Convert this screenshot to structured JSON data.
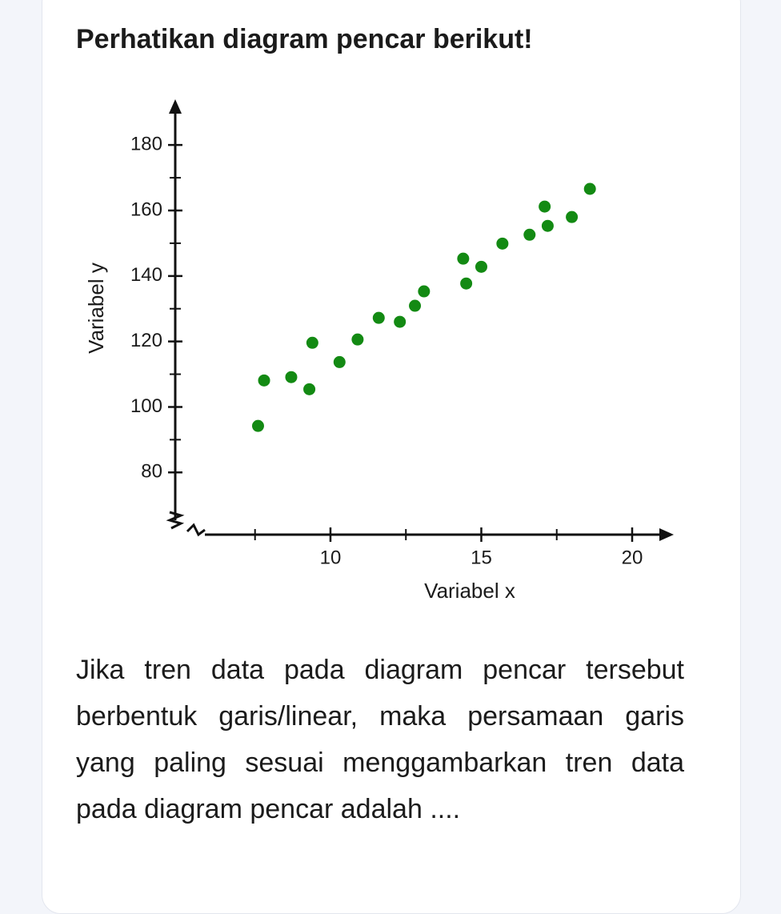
{
  "header": {
    "title": "Perhatikan diagram pencar berikut!"
  },
  "chart_data": {
    "type": "scatter",
    "x_label": "Variabel x",
    "y_label": "Variabel y",
    "series": [
      {
        "color": "#138a13",
        "x": [
          7.6,
          7.8,
          8.7,
          9.3,
          9.4,
          10.3,
          10.9,
          11.6,
          12.3,
          12.8,
          13.1,
          14.4,
          14.5,
          15.0,
          15.7,
          16.6,
          17.1,
          17.2,
          18.0,
          18.6
        ],
        "values": [
          94.2,
          108.1,
          109.1,
          105.4,
          119.6,
          113.7,
          120.6,
          127.2,
          126.0,
          130.9,
          135.3,
          145.3,
          137.7,
          142.8,
          149.9,
          152.6,
          161.2,
          155.3,
          158.0,
          166.6
        ]
      }
    ],
    "xlim": [
      5.2,
      21.3
    ],
    "ylim": [
      61,
      193
    ],
    "xticks": [
      10,
      15,
      20
    ],
    "x_minor_ticks": [
      7.5,
      12.5,
      17.5
    ],
    "yticks": [
      80,
      100,
      120,
      140,
      160,
      180
    ],
    "y_minor_ticks": [
      90,
      110,
      130,
      150,
      170
    ],
    "grid": false
  },
  "question": {
    "text": "Jika tren data pada diagram pencar tersebut berbentuk garis/linear, maka persamaan garis yang paling sesuai menggambarkan tren data pada diagram pencar adalah ...."
  }
}
